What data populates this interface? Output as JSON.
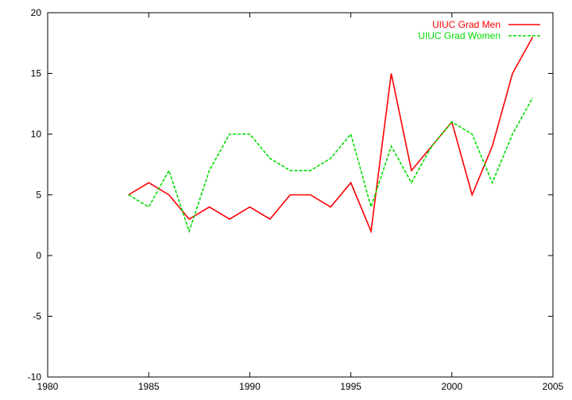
{
  "chart_data": {
    "type": "line",
    "title": "",
    "xlabel": "",
    "ylabel": "",
    "xlim": [
      1980,
      2005
    ],
    "ylim": [
      -10,
      20
    ],
    "xticks": [
      1980,
      1985,
      1990,
      1995,
      2000,
      2005
    ],
    "yticks": [
      -10,
      -5,
      0,
      5,
      10,
      15,
      20
    ],
    "grid": false,
    "legend_position": "top-right",
    "x": [
      1984,
      1985,
      1986,
      1987,
      1988,
      1989,
      1990,
      1991,
      1992,
      1993,
      1994,
      1995,
      1996,
      1997,
      1998,
      1999,
      2000,
      2001,
      2002,
      2003,
      2004
    ],
    "series": [
      {
        "name": "UIUC Grad Men",
        "color": "#ff0000",
        "dash": "solid",
        "values": [
          5,
          6,
          5,
          3,
          4,
          3,
          4,
          3,
          5,
          5,
          4,
          6,
          2,
          15,
          7,
          9,
          11,
          5,
          9,
          15,
          18
        ]
      },
      {
        "name": "UIUC Grad Women",
        "color": "#00dd00",
        "dash": "dashed",
        "values": [
          5,
          4,
          7,
          2,
          7,
          10,
          10,
          8,
          7,
          7,
          8,
          10,
          4,
          9,
          6,
          9,
          11,
          10,
          6,
          10,
          13
        ]
      }
    ]
  }
}
